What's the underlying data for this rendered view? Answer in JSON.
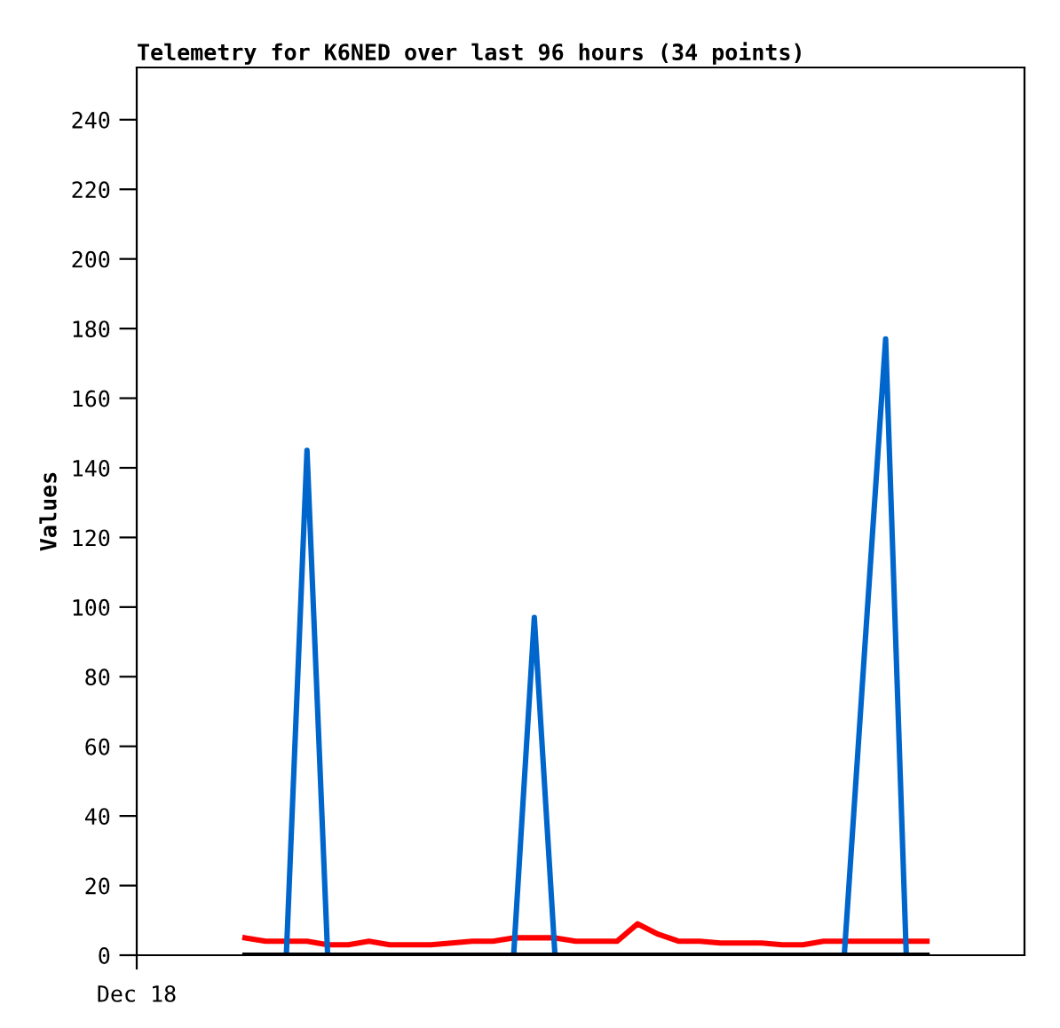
{
  "chart_data": {
    "type": "line",
    "title": "Telemetry for K6NED over last 96 hours (34 points)",
    "ylabel": "Values",
    "annotations": [
      "Dec 18"
    ],
    "categories": [
      null,
      null,
      null,
      null,
      null,
      null,
      null,
      null,
      null,
      null,
      null,
      null,
      null,
      null,
      null,
      null,
      null,
      null,
      null,
      null,
      null,
      null,
      null,
      null,
      null,
      null,
      null,
      null,
      null,
      null,
      null,
      null,
      null,
      null
    ],
    "ylim": [
      0,
      255
    ],
    "yticks": [
      0,
      20,
      40,
      60,
      80,
      100,
      120,
      140,
      160,
      180,
      200,
      220,
      240
    ],
    "grid": false,
    "legend": false,
    "series": [
      {
        "color": "#ff0000",
        "values": [
          5,
          4,
          4,
          4,
          3,
          3,
          4,
          3,
          3,
          3,
          3.5,
          4,
          4,
          5,
          5,
          5,
          4,
          4,
          4,
          9,
          6,
          4,
          4,
          3.5,
          3.5,
          3.5,
          3,
          3,
          4,
          4,
          4,
          4,
          4,
          4
        ]
      },
      {
        "color": "#0066cc",
        "values": [
          null,
          null,
          0,
          145,
          0,
          null,
          null,
          null,
          null,
          null,
          null,
          null,
          null,
          0,
          97,
          0,
          null,
          null,
          null,
          null,
          null,
          null,
          null,
          null,
          null,
          null,
          null,
          null,
          null,
          0,
          89,
          177,
          0,
          null
        ]
      },
      {
        "color": "#000000",
        "values": [
          0,
          0,
          0,
          0,
          0,
          0,
          0,
          0,
          0,
          0,
          0,
          0,
          0,
          0,
          0,
          0,
          0,
          0,
          0,
          0,
          0,
          0,
          0,
          0,
          0,
          0,
          0,
          0,
          0,
          0,
          0,
          0,
          0,
          0
        ]
      }
    ]
  }
}
